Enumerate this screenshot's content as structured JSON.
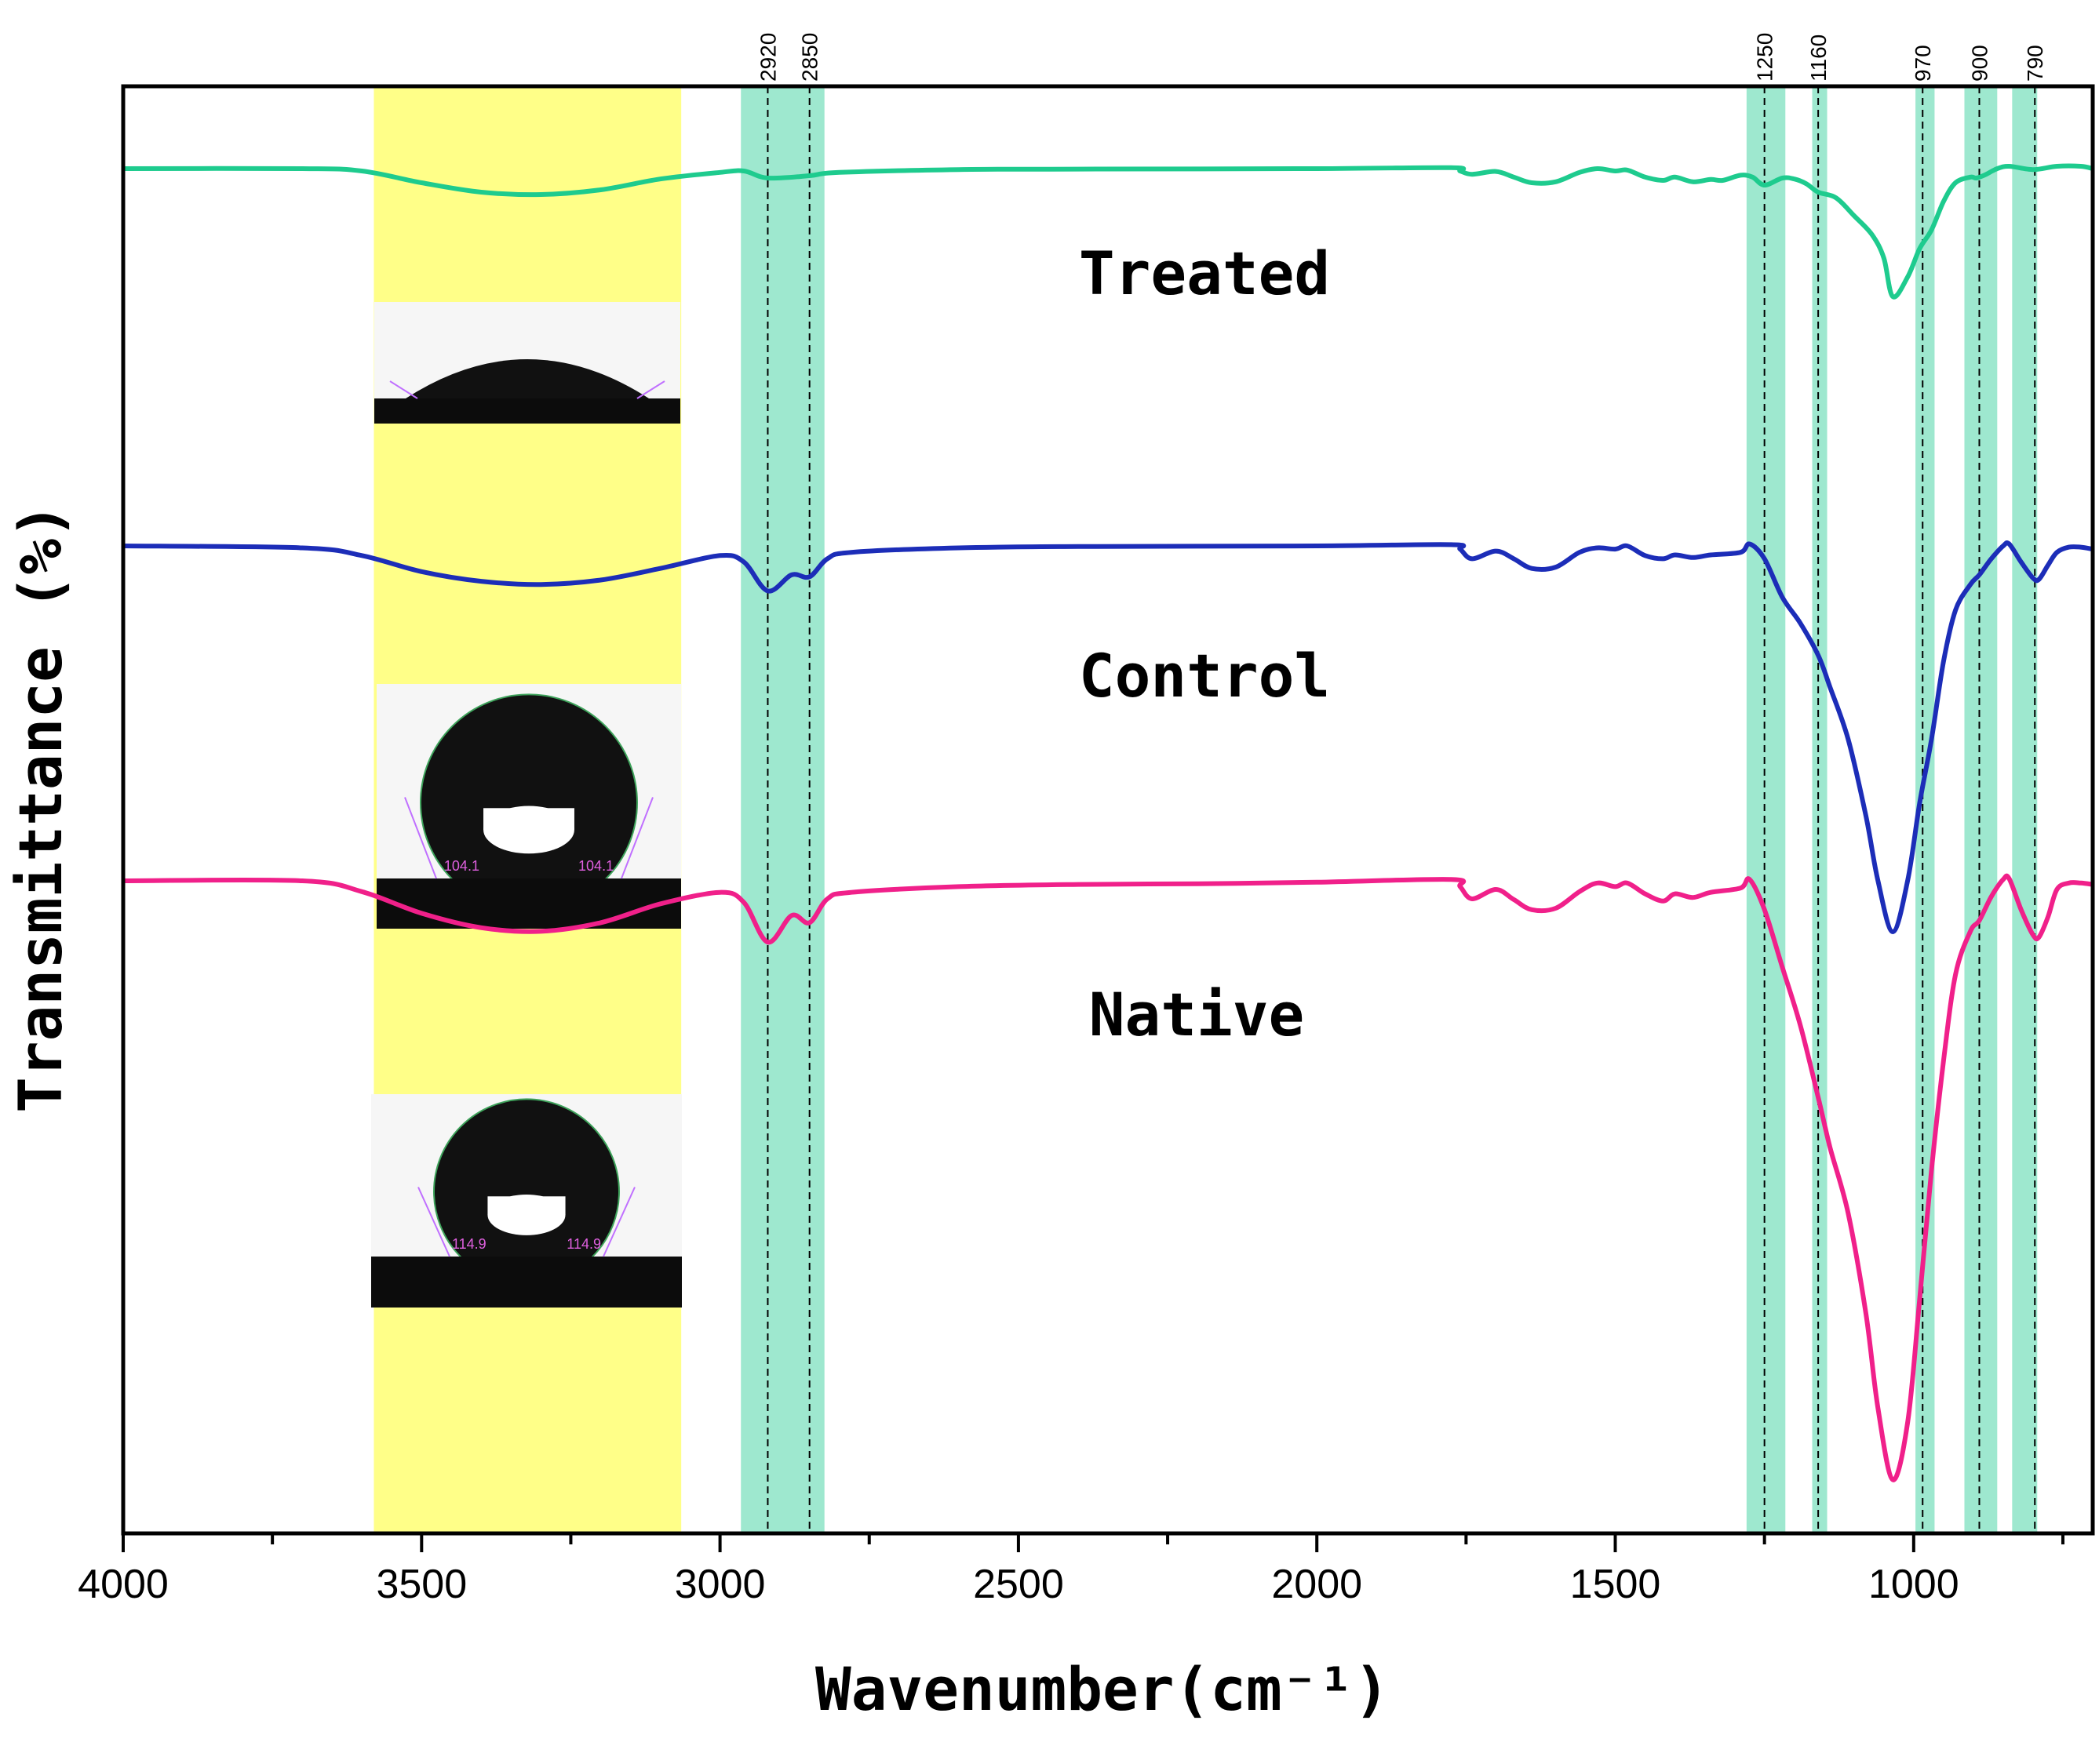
{
  "chart_data": {
    "type": "line",
    "title": "",
    "xlabel": "Wavenumber(cm⁻¹)",
    "ylabel": "Transmittance (%)",
    "xlim": [
      4000,
      700
    ],
    "x_ticks": [
      "4000",
      "3500",
      "3000",
      "2500",
      "2000",
      "1500",
      "1000"
    ],
    "x_tick_values": [
      4000,
      3500,
      3000,
      2500,
      2000,
      1500,
      1000
    ],
    "y_ticks_shown": false,
    "bands": [
      {
        "name": "yellow",
        "from": 3580,
        "to": 3065,
        "color": "#ffff88"
      },
      {
        "name": "ch-stretch",
        "from": 2965,
        "to": 2825,
        "color": "#9ee8cf"
      },
      {
        "name": "b1250",
        "from": 1280,
        "to": 1215,
        "color": "#9ee8cf"
      },
      {
        "name": "b1160",
        "from": 1170,
        "to": 1145,
        "color": "#9ee8cf"
      },
      {
        "name": "b970",
        "from": 997,
        "to": 965,
        "color": "#9ee8cf"
      },
      {
        "name": "b900",
        "from": 915,
        "to": 860,
        "color": "#9ee8cf"
      },
      {
        "name": "b790",
        "from": 835,
        "to": 793,
        "color": "#9ee8cf"
      }
    ],
    "peak_lines": [
      {
        "label": "2920",
        "x": 2920
      },
      {
        "label": "2850",
        "x": 2850
      },
      {
        "label": "1250",
        "x": 1250
      },
      {
        "label": "1160",
        "x": 1160
      },
      {
        "label": "970",
        "x": 985
      },
      {
        "label": "900",
        "x": 890
      },
      {
        "label": "790",
        "x": 797
      }
    ],
    "series": [
      {
        "name": "Treated",
        "color": "#1ecb8e",
        "points": [
          [
            4000,
            1.0
          ],
          [
            3700,
            1.0
          ],
          [
            3600,
            0.95
          ],
          [
            3500,
            0.7
          ],
          [
            3400,
            0.5
          ],
          [
            3300,
            0.45
          ],
          [
            3200,
            0.55
          ],
          [
            3100,
            0.78
          ],
          [
            3000,
            0.92
          ],
          [
            2960,
            0.95
          ],
          [
            2920,
            0.8
          ],
          [
            2850,
            0.85
          ],
          [
            2800,
            0.92
          ],
          [
            2600,
            0.98
          ],
          [
            2400,
            0.99
          ],
          [
            2000,
            1.0
          ],
          [
            1775,
            1.02
          ],
          [
            1760,
            0.95
          ],
          [
            1740,
            0.88
          ],
          [
            1700,
            0.94
          ],
          [
            1670,
            0.82
          ],
          [
            1640,
            0.7
          ],
          [
            1600,
            0.72
          ],
          [
            1560,
            0.92
          ],
          [
            1530,
            1.0
          ],
          [
            1500,
            0.95
          ],
          [
            1480,
            0.97
          ],
          [
            1450,
            0.82
          ],
          [
            1420,
            0.75
          ],
          [
            1400,
            0.82
          ],
          [
            1370,
            0.72
          ],
          [
            1340,
            0.77
          ],
          [
            1320,
            0.75
          ],
          [
            1290,
            0.86
          ],
          [
            1270,
            0.82
          ],
          [
            1250,
            0.65
          ],
          [
            1220,
            0.8
          ],
          [
            1200,
            0.78
          ],
          [
            1180,
            0.68
          ],
          [
            1160,
            0.5
          ],
          [
            1130,
            0.38
          ],
          [
            1100,
            0.0
          ],
          [
            1070,
            -0.4
          ],
          [
            1050,
            -0.9
          ],
          [
            1035,
            -1.72
          ],
          [
            1010,
            -1.3
          ],
          [
            990,
            -0.7
          ],
          [
            970,
            -0.3
          ],
          [
            950,
            0.3
          ],
          [
            930,
            0.7
          ],
          [
            905,
            0.82
          ],
          [
            895,
            0.8
          ],
          [
            880,
            0.87
          ],
          [
            860,
            1.0
          ],
          [
            840,
            1.05
          ],
          [
            800,
            0.98
          ],
          [
            760,
            1.05
          ],
          [
            720,
            1.05
          ],
          [
            700,
            1.0
          ]
        ]
      },
      {
        "name": "Control",
        "color": "#1c2db8",
        "points": [
          [
            4000,
            1.0
          ],
          [
            3700,
            0.97
          ],
          [
            3600,
            0.85
          ],
          [
            3500,
            0.6
          ],
          [
            3400,
            0.45
          ],
          [
            3300,
            0.4
          ],
          [
            3200,
            0.47
          ],
          [
            3100,
            0.65
          ],
          [
            3000,
            0.85
          ],
          [
            2960,
            0.75
          ],
          [
            2920,
            0.3
          ],
          [
            2880,
            0.55
          ],
          [
            2850,
            0.52
          ],
          [
            2820,
            0.8
          ],
          [
            2780,
            0.9
          ],
          [
            2600,
            0.97
          ],
          [
            2400,
            0.99
          ],
          [
            2000,
            1.0
          ],
          [
            1775,
            1.02
          ],
          [
            1760,
            0.95
          ],
          [
            1740,
            0.8
          ],
          [
            1700,
            0.92
          ],
          [
            1670,
            0.8
          ],
          [
            1640,
            0.65
          ],
          [
            1600,
            0.67
          ],
          [
            1560,
            0.9
          ],
          [
            1530,
            0.97
          ],
          [
            1500,
            0.95
          ],
          [
            1480,
            1.0
          ],
          [
            1450,
            0.85
          ],
          [
            1420,
            0.8
          ],
          [
            1400,
            0.86
          ],
          [
            1370,
            0.82
          ],
          [
            1340,
            0.86
          ],
          [
            1290,
            0.9
          ],
          [
            1275,
            1.03
          ],
          [
            1250,
            0.8
          ],
          [
            1220,
            0.2
          ],
          [
            1190,
            -0.2
          ],
          [
            1160,
            -0.7
          ],
          [
            1140,
            -1.2
          ],
          [
            1110,
            -2.0
          ],
          [
            1080,
            -3.2
          ],
          [
            1060,
            -4.2
          ],
          [
            1035,
            -5.0
          ],
          [
            1010,
            -4.2
          ],
          [
            990,
            -3.0
          ],
          [
            970,
            -2.0
          ],
          [
            950,
            -0.8
          ],
          [
            930,
            0.0
          ],
          [
            905,
            0.4
          ],
          [
            890,
            0.55
          ],
          [
            870,
            0.8
          ],
          [
            850,
            1.0
          ],
          [
            840,
            1.03
          ],
          [
            820,
            0.75
          ],
          [
            800,
            0.5
          ],
          [
            790,
            0.48
          ],
          [
            775,
            0.7
          ],
          [
            760,
            0.9
          ],
          [
            740,
            0.98
          ],
          [
            720,
            0.98
          ],
          [
            700,
            0.95
          ]
        ]
      },
      {
        "name": "Native",
        "color": "#f0208a",
        "points": [
          [
            4000,
            1.0
          ],
          [
            3700,
            1.0
          ],
          [
            3600,
            0.85
          ],
          [
            3500,
            0.55
          ],
          [
            3400,
            0.35
          ],
          [
            3300,
            0.3
          ],
          [
            3200,
            0.42
          ],
          [
            3100,
            0.68
          ],
          [
            3000,
            0.84
          ],
          [
            2960,
            0.7
          ],
          [
            2920,
            0.15
          ],
          [
            2880,
            0.52
          ],
          [
            2850,
            0.42
          ],
          [
            2820,
            0.75
          ],
          [
            2780,
            0.84
          ],
          [
            2600,
            0.92
          ],
          [
            2400,
            0.95
          ],
          [
            2200,
            0.96
          ],
          [
            2000,
            0.98
          ],
          [
            1775,
            1.02
          ],
          [
            1760,
            0.92
          ],
          [
            1740,
            0.75
          ],
          [
            1700,
            0.88
          ],
          [
            1670,
            0.74
          ],
          [
            1640,
            0.6
          ],
          [
            1600,
            0.62
          ],
          [
            1560,
            0.85
          ],
          [
            1530,
            0.97
          ],
          [
            1500,
            0.92
          ],
          [
            1480,
            0.97
          ],
          [
            1450,
            0.82
          ],
          [
            1420,
            0.72
          ],
          [
            1400,
            0.82
          ],
          [
            1370,
            0.77
          ],
          [
            1340,
            0.84
          ],
          [
            1290,
            0.9
          ],
          [
            1275,
            1.02
          ],
          [
            1250,
            0.6
          ],
          [
            1220,
            -0.2
          ],
          [
            1190,
            -1.0
          ],
          [
            1160,
            -2.0
          ],
          [
            1140,
            -2.7
          ],
          [
            1110,
            -3.6
          ],
          [
            1080,
            -5.0
          ],
          [
            1060,
            -6.3
          ],
          [
            1035,
            -7.3
          ],
          [
            1010,
            -6.5
          ],
          [
            990,
            -4.8
          ],
          [
            970,
            -3.0
          ],
          [
            950,
            -1.5
          ],
          [
            930,
            -0.3
          ],
          [
            905,
            0.3
          ],
          [
            890,
            0.45
          ],
          [
            870,
            0.78
          ],
          [
            850,
            1.02
          ],
          [
            840,
            1.03
          ],
          [
            820,
            0.6
          ],
          [
            800,
            0.25
          ],
          [
            790,
            0.22
          ],
          [
            775,
            0.5
          ],
          [
            760,
            0.88
          ],
          [
            740,
            0.97
          ],
          [
            720,
            0.97
          ],
          [
            700,
            0.95
          ]
        ]
      }
    ],
    "series_labels": [
      {
        "text": "Treated",
        "series": "Treated"
      },
      {
        "text": "Control",
        "series": "Control"
      },
      {
        "text": "Native",
        "series": "Native"
      }
    ],
    "inset_images": [
      {
        "name": "treated-droplet",
        "series": "Treated",
        "angle_left": "",
        "angle_right": ""
      },
      {
        "name": "control-droplet",
        "series": "Control",
        "angle_left": "104.1",
        "angle_right": "104.1"
      },
      {
        "name": "native-droplet",
        "series": "Native",
        "angle_left": "114.9",
        "angle_right": "114.9"
      }
    ]
  }
}
